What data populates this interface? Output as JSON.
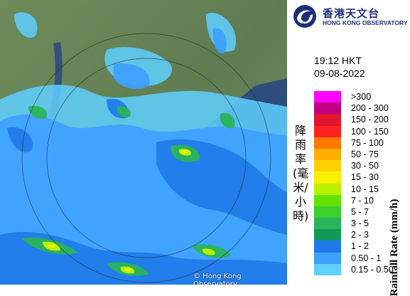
{
  "map": {
    "copyright": "© Hong Kong Observatory"
  },
  "logo": {
    "chinese": "香港天文台",
    "english": "HONG KONG OBSERVATORY",
    "icon": "hko-swirl-logo-icon",
    "color": "#1e2f7a"
  },
  "timestamp": {
    "time": "19:12 HKT",
    "date": "09-08-2022"
  },
  "legend": {
    "title_cn": "降雨率(毫米/小時)",
    "title_en": "Rainfall Rate (mm/h)",
    "items": [
      {
        "label": ">300",
        "color": "#ff00ff"
      },
      {
        "label": "200 - 300",
        "color": "#c0007f"
      },
      {
        "label": "150 - 200",
        "color": "#e0142c"
      },
      {
        "label": "100 - 150",
        "color": "#ff2020"
      },
      {
        "label": "75 - 100",
        "color": "#ff7a00"
      },
      {
        "label": "50 - 75",
        "color": "#ffae00"
      },
      {
        "label": "30 - 50",
        "color": "#ffd000"
      },
      {
        "label": "15 - 30",
        "color": "#f6f000"
      },
      {
        "label": "10 - 15",
        "color": "#b8f000"
      },
      {
        "label": "7 - 10",
        "color": "#62e200"
      },
      {
        "label": "5 - 7",
        "color": "#3ccf2e"
      },
      {
        "label": "3 - 5",
        "color": "#2ab45a"
      },
      {
        "label": "2 - 3",
        "color": "#0e9a56"
      },
      {
        "label": "1 - 2",
        "color": "#1e7ae8"
      },
      {
        "label": "0.50 - 1",
        "color": "#3ea0ff"
      },
      {
        "label": "0.15 - 0.50",
        "color": "#5fd0ff"
      }
    ]
  }
}
